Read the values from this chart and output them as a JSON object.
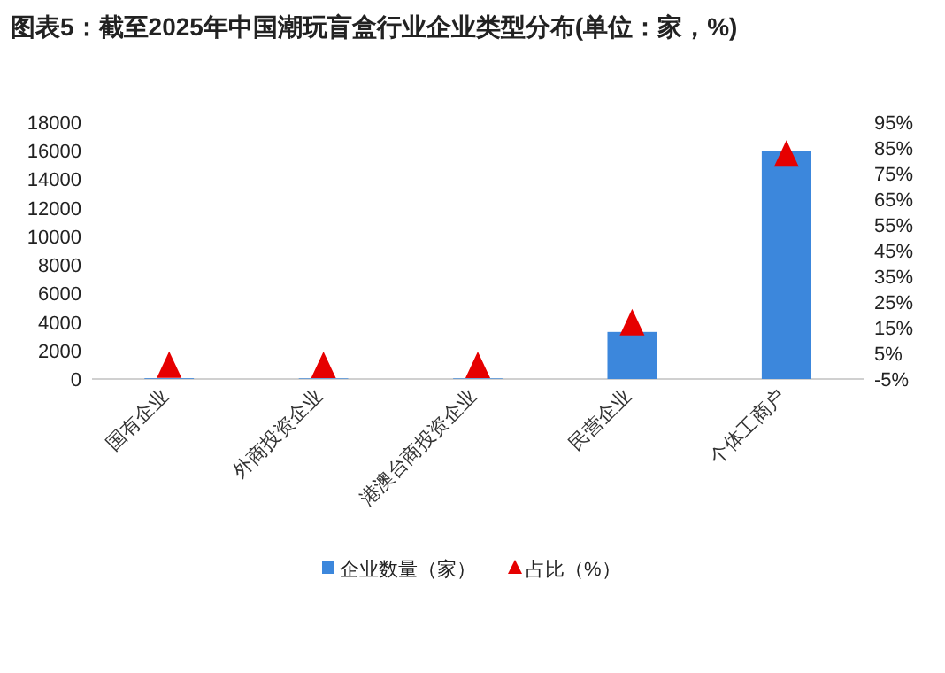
{
  "chart_data": {
    "type": "bar",
    "title": "图表5：截至2025年中国潮玩盲盒行业企业类型分布(单位：家，%)",
    "categories": [
      "国有企业",
      "外商投资企业",
      "港澳台商投资企业",
      "民营企业",
      "个体工商户"
    ],
    "series": [
      {
        "name": "企业数量（家）",
        "color": "#3c87dc",
        "values": [
          50,
          40,
          40,
          3300,
          16000
        ]
      },
      {
        "name": "占比（%）",
        "type": "scatter",
        "axis": "y2",
        "color": "#e60000",
        "marker": "triangle",
        "values": [
          0.3,
          0.2,
          0.2,
          16.8,
          82.5
        ]
      }
    ],
    "ylim": [
      0,
      18000
    ],
    "yticks": [
      0,
      2000,
      4000,
      6000,
      8000,
      10000,
      12000,
      14000,
      16000,
      18000
    ],
    "y2lim": [
      -5,
      95
    ],
    "y2ticks": [
      {
        "value": -5,
        "label": "-5%"
      },
      {
        "value": 5,
        "label": "5%"
      },
      {
        "value": 15,
        "label": "15%"
      },
      {
        "value": 25,
        "label": "25%"
      },
      {
        "value": 35,
        "label": "35%"
      },
      {
        "value": 45,
        "label": "45%"
      },
      {
        "value": 55,
        "label": "55%"
      },
      {
        "value": 65,
        "label": "65%"
      },
      {
        "value": 75,
        "label": "75%"
      },
      {
        "value": 85,
        "label": "85%"
      },
      {
        "value": 95,
        "label": "95%"
      }
    ],
    "grid": false,
    "legend": "bottom"
  }
}
